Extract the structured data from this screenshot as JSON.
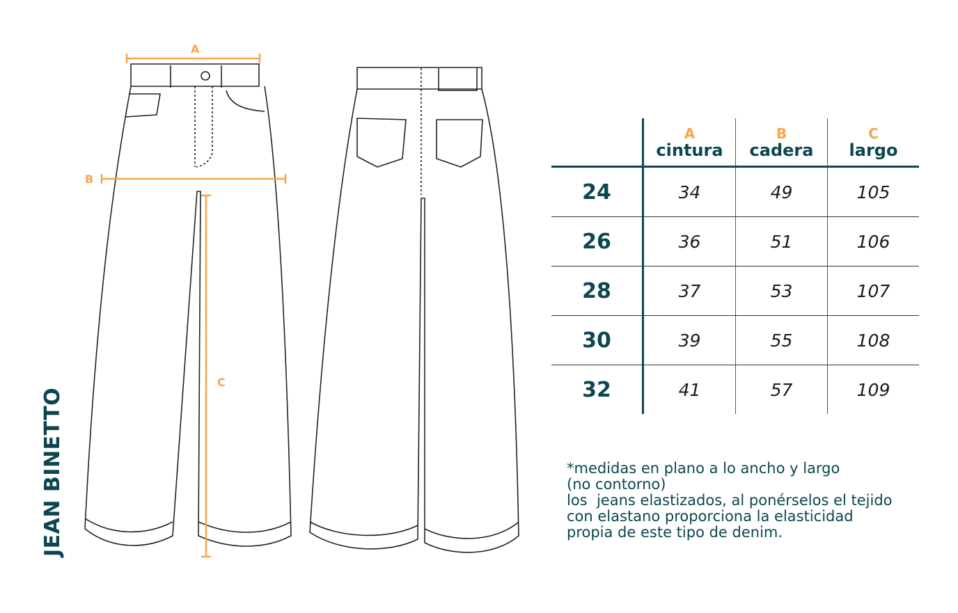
{
  "product_title": "JEAN BINETTO",
  "dimension_labels": {
    "a": "A",
    "b": "B",
    "c": "C"
  },
  "colors": {
    "accent": "#f5a64a",
    "primary": "#0c4650"
  },
  "table": {
    "headers": [
      {
        "letter": "A",
        "name": "cintura"
      },
      {
        "letter": "B",
        "name": "cadera"
      },
      {
        "letter": "C",
        "name": "largo"
      }
    ],
    "rows": [
      {
        "size": "24",
        "values": [
          "34",
          "49",
          "105"
        ]
      },
      {
        "size": "26",
        "values": [
          "36",
          "51",
          "106"
        ]
      },
      {
        "size": "28",
        "values": [
          "37",
          "53",
          "107"
        ]
      },
      {
        "size": "30",
        "values": [
          "39",
          "55",
          "108"
        ]
      },
      {
        "size": "32",
        "values": [
          "41",
          "57",
          "109"
        ]
      }
    ]
  },
  "note": "*medidas en plano a lo ancho y largo\n(no contorno)\nlos  jeans elastizados, al ponérselos el tejido\ncon elastano proporciona la elasticidad\npropia de este tipo de denim."
}
